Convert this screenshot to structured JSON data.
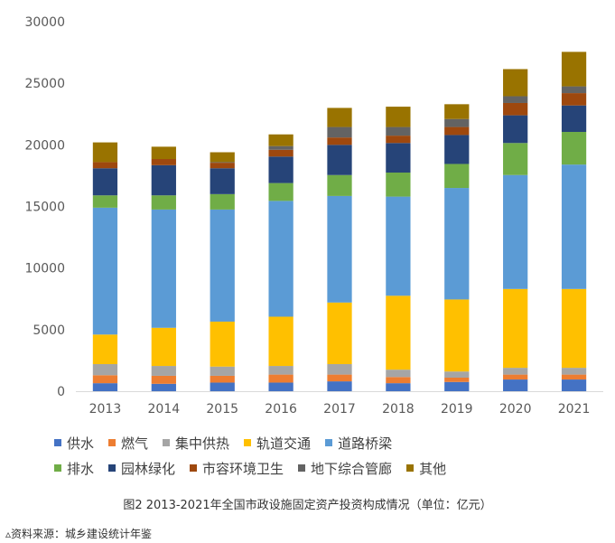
{
  "chart_data": {
    "type": "bar",
    "stacked": true,
    "categories": [
      "2013",
      "2014",
      "2015",
      "2016",
      "2017",
      "2018",
      "2019",
      "2020",
      "2021"
    ],
    "ylim": [
      0,
      30000
    ],
    "yticks": [
      "0",
      "5000",
      "10000",
      "15000",
      "20000",
      "25000",
      "30000"
    ],
    "grid": false,
    "legend_position": "bottom",
    "series": [
      {
        "name": "供水",
        "color": "#4472C4",
        "values": [
          650,
          600,
          700,
          700,
          800,
          650,
          750,
          950,
          950
        ]
      },
      {
        "name": "燃气",
        "color": "#ED7D31",
        "values": [
          650,
          650,
          550,
          650,
          550,
          500,
          350,
          400,
          400
        ]
      },
      {
        "name": "集中供热",
        "color": "#A5A5A5",
        "values": [
          900,
          800,
          750,
          700,
          850,
          600,
          500,
          550,
          550
        ]
      },
      {
        "name": "轨道交通",
        "color": "#FFC000",
        "values": [
          2400,
          3100,
          3650,
          4000,
          5000,
          6000,
          5850,
          6400,
          6400
        ]
      },
      {
        "name": "道路桥梁",
        "color": "#5B9BD5",
        "values": [
          10300,
          9600,
          9100,
          9400,
          8650,
          8050,
          9050,
          9250,
          10100
        ]
      },
      {
        "name": "排水",
        "color": "#70AD47",
        "values": [
          1000,
          1150,
          1250,
          1450,
          1700,
          1950,
          1950,
          2600,
          2650
        ]
      },
      {
        "name": "园林绿化",
        "color": "#264478",
        "values": [
          2200,
          2450,
          2100,
          2150,
          2450,
          2400,
          2350,
          2250,
          2150
        ]
      },
      {
        "name": "市容环境卫生",
        "color": "#9E480E",
        "values": [
          500,
          500,
          450,
          550,
          600,
          600,
          650,
          1000,
          1000
        ]
      },
      {
        "name": "地下综合管廊",
        "color": "#636363",
        "values": [
          0,
          0,
          50,
          300,
          850,
          700,
          650,
          550,
          550
        ]
      },
      {
        "name": "其他",
        "color": "#997300",
        "values": [
          1600,
          1000,
          800,
          950,
          1550,
          1650,
          1200,
          2200,
          2800
        ]
      }
    ]
  },
  "caption": "图2 2013-2021年全国市政设施固定资产投资构成情况（单位：亿元）",
  "source": "▵资料来源：城乡建设统计年鉴"
}
